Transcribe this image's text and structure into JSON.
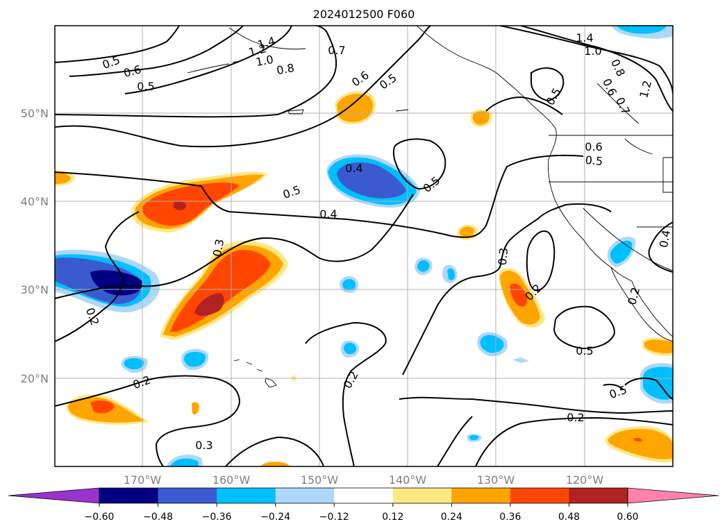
{
  "title": "2024012500 F060",
  "map": {
    "lat_labels": [
      "50°N",
      "40°N",
      "30°N",
      "20°N"
    ],
    "lon_labels": [
      "170°W",
      "160°W",
      "150°W",
      "140°W",
      "130°W",
      "120°W"
    ],
    "contour_labels": [
      "0.5",
      "0.6",
      "1.4",
      "1.2",
      "1.0",
      "0.8",
      "0.7",
      "0.6",
      "0.5",
      "1.4",
      "1.0",
      "0.8",
      "0.5",
      "0.6",
      "0.7",
      "1.2",
      "0.4",
      "0.5",
      "0.5",
      "0.4",
      "0.6",
      "0.5",
      "0.3",
      "0.3",
      "0.2",
      "0.2",
      "0.5",
      "0.2",
      "0.2",
      "0.2",
      "0.5",
      "0.2",
      "0.4",
      "0.3",
      "0.5"
    ]
  },
  "colorbar": {
    "tick_labels": [
      "−0.60",
      "−0.48",
      "−0.36",
      "−0.24",
      "−0.12",
      "0.12",
      "0.24",
      "0.36",
      "0.48",
      "0.60"
    ],
    "colors": [
      "#9933cc",
      "#000080",
      "#3a5bd0",
      "#00bfff",
      "#add8f8",
      "#ffffff",
      "#ffe884",
      "#ffa500",
      "#ff4500",
      "#b22222",
      "#ff82aa"
    ]
  }
}
